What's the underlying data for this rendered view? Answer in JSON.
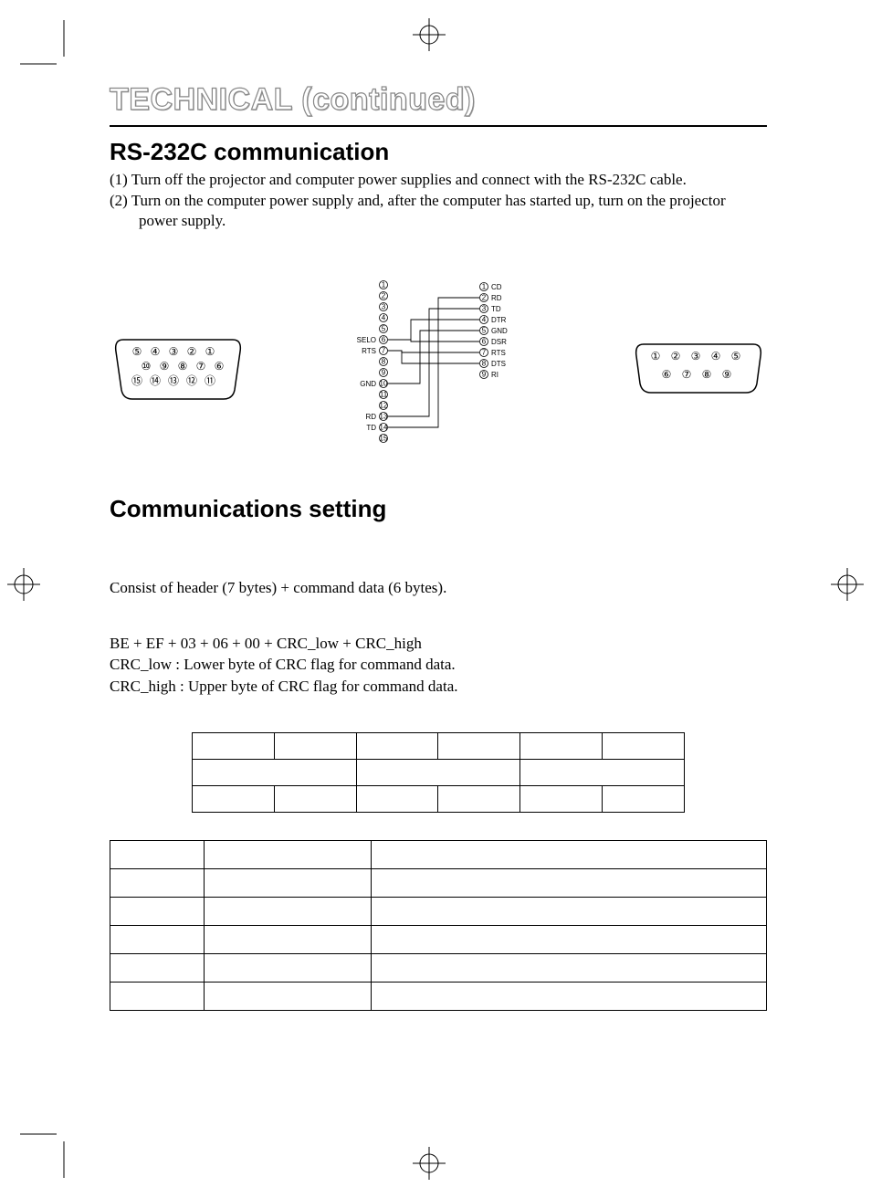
{
  "page": {
    "outline_title": "TECHNICAL (continued)",
    "section1_title": "RS-232C communication",
    "step1": "(1) Turn off the projector and computer power supplies and connect with the RS-232C cable.",
    "step2": "(2) Turn on the computer power supply and, after the computer has started up, turn on the projector power supply.",
    "section2_title": "Communications setting",
    "body1": "Consist of header (7 bytes) + command data (6 bytes).",
    "body2": "BE + EF + 03 + 06 + 00 + CRC_low + CRC_high",
    "body3": "CRC_low : Lower byte of CRC flag for command data.",
    "body4": "CRC_high : Upper byte of CRC flag for command data."
  },
  "wiring": {
    "left_labels": [
      "SELO",
      "RTS",
      "",
      "",
      "GND",
      "",
      "",
      "RD",
      "TD"
    ],
    "left_pin_start": 1,
    "left_pin_count": 15,
    "right_labels": [
      "CD",
      "RD",
      "TD",
      "DTR",
      "GND",
      "DSR",
      "RTS",
      "DTS",
      "RI"
    ],
    "right_pin_count": 9,
    "line_color": "#000000"
  },
  "connector_left": {
    "rows": [
      [
        "⑤",
        "④",
        "③",
        "②",
        "①"
      ],
      [
        "⑩",
        "⑨",
        "⑧",
        "⑦",
        "⑥"
      ],
      [
        "⑮",
        "⑭",
        "⑬",
        "⑫",
        "⑪"
      ]
    ]
  },
  "connector_right": {
    "rows": [
      [
        "①",
        "②",
        "③",
        "④",
        "⑤"
      ],
      [
        "⑥",
        "⑦",
        "⑧",
        "⑨"
      ]
    ]
  },
  "table1": {
    "cols": 6,
    "rows": 3
  },
  "table2": {
    "cols": 3,
    "rows": 6
  },
  "colors": {
    "stroke": "#000000",
    "bg": "#ffffff"
  }
}
